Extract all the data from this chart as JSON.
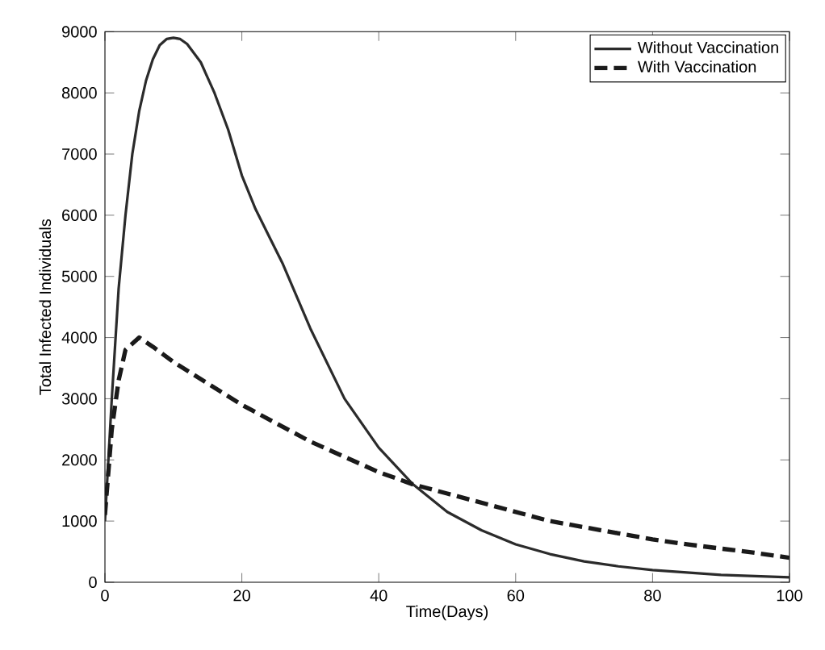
{
  "chart_data": {
    "type": "line",
    "xlabel": "Time(Days)",
    "ylabel": "Total Infected Individuals",
    "xlim": [
      0,
      100
    ],
    "ylim": [
      0,
      9000
    ],
    "xticks": [
      0,
      20,
      40,
      60,
      80,
      100
    ],
    "yticks": [
      0,
      1000,
      2000,
      3000,
      4000,
      5000,
      6000,
      7000,
      8000,
      9000
    ],
    "grid": false,
    "legend": "top right",
    "series": [
      {
        "name": "Without Vaccination",
        "color": "#2b2b2b",
        "line_style": "solid",
        "x": [
          0,
          1,
          2,
          3,
          4,
          5,
          6,
          7,
          8,
          9,
          10,
          11,
          12,
          14,
          16,
          18,
          20,
          22,
          24,
          26,
          30,
          35,
          40,
          45,
          50,
          55,
          60,
          65,
          70,
          75,
          80,
          90,
          100
        ],
        "values": [
          1000,
          3000,
          4800,
          6000,
          7000,
          7700,
          8200,
          8550,
          8780,
          8880,
          8900,
          8880,
          8800,
          8500,
          8000,
          7400,
          6650,
          6100,
          5650,
          5200,
          4150,
          3000,
          2200,
          1600,
          1150,
          850,
          620,
          460,
          340,
          260,
          200,
          120,
          80
        ]
      },
      {
        "name": "With Vaccination",
        "color": "#1a1a1a",
        "line_style": "dashed",
        "x": [
          0,
          1,
          2,
          3,
          5,
          7,
          10,
          15,
          20,
          25,
          30,
          35,
          40,
          45,
          50,
          55,
          60,
          65,
          70,
          75,
          80,
          85,
          90,
          95,
          100
        ],
        "values": [
          1100,
          2500,
          3300,
          3800,
          4000,
          3850,
          3600,
          3250,
          2900,
          2600,
          2300,
          2050,
          1800,
          1600,
          1450,
          1300,
          1150,
          1000,
          900,
          800,
          700,
          620,
          550,
          480,
          400
        ]
      }
    ]
  }
}
